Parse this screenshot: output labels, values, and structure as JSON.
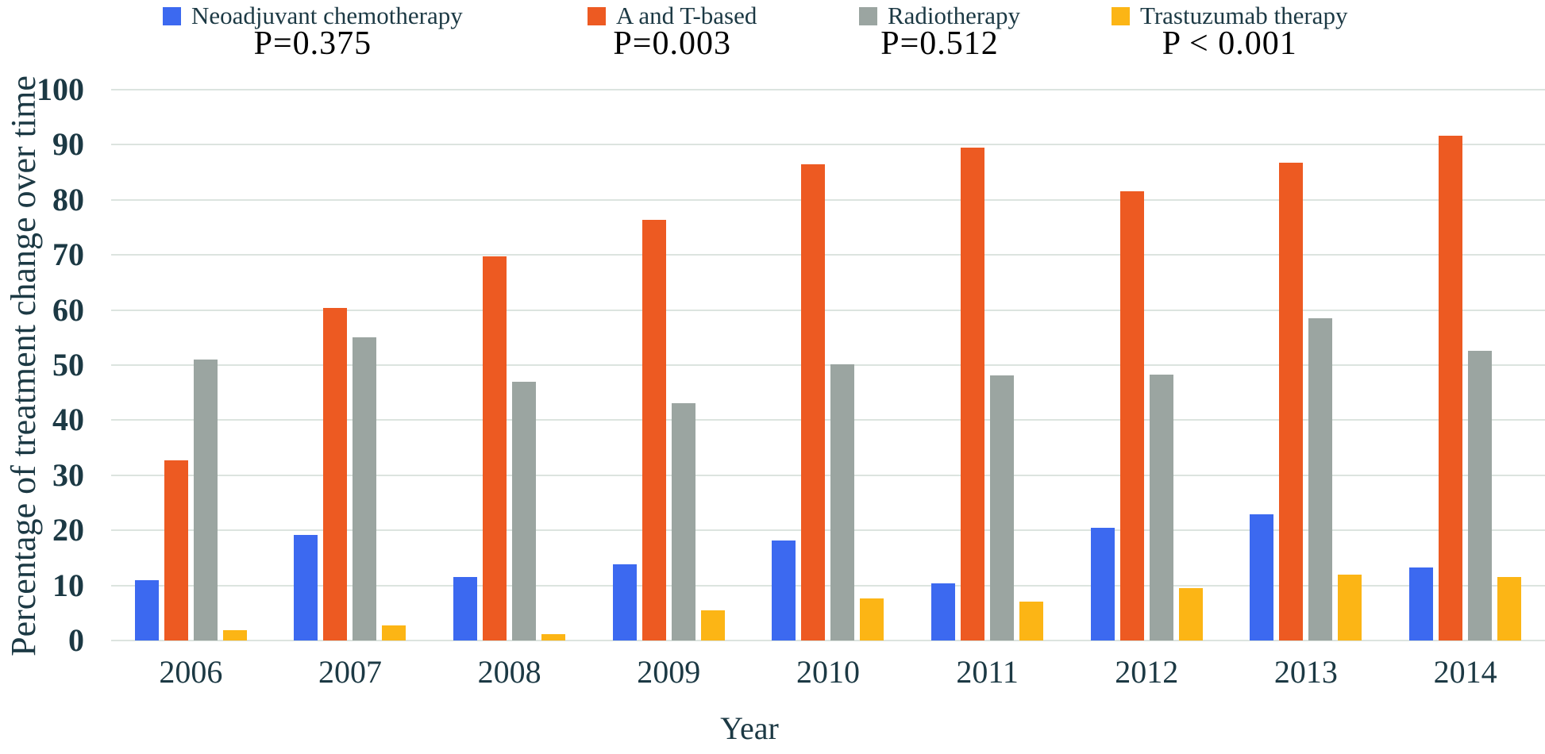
{
  "legend": [
    {
      "label": "Neoadjuvant chemotherapy",
      "p_value": "P=0.375",
      "color": "#3c69f0"
    },
    {
      "label": "A and T-based",
      "p_value": "P=0.003",
      "color": "#ed5a22"
    },
    {
      "label": "Radiotherapy",
      "p_value": "P=0.512",
      "color": "#9ba5a1"
    },
    {
      "label": "Trastuzumab therapy",
      "p_value": "P < 0.001",
      "color": "#fcb515"
    }
  ],
  "chart_data": {
    "type": "bar",
    "title": "",
    "xlabel": "Year",
    "ylabel": "Percentage of treatment change over time",
    "ylim": [
      0,
      100
    ],
    "grid": true,
    "legend_position": "top",
    "yticks": [
      "100",
      "90",
      "80",
      "70",
      "60",
      "50",
      "40",
      "30",
      "20",
      "10",
      "0"
    ],
    "categories": [
      "2006",
      "2007",
      "2008",
      "2009",
      "2010",
      "2011",
      "2012",
      "2013",
      "2014"
    ],
    "series": [
      {
        "name": "Neoadjuvant chemotherapy",
        "p_value": "P=0.375",
        "values": [
          10.9,
          19.2,
          11.6,
          13.9,
          18.2,
          10.4,
          20.4,
          22.9,
          13.2
        ]
      },
      {
        "name": "A and T-based",
        "p_value": "P=0.003",
        "values": [
          32.7,
          60.4,
          69.8,
          76.3,
          86.4,
          89.5,
          81.6,
          86.7,
          91.6
        ]
      },
      {
        "name": "Radiotherapy",
        "p_value": "P=0.512",
        "values": [
          51.0,
          55.0,
          47.0,
          43.1,
          50.1,
          48.2,
          48.3,
          58.5,
          52.6
        ]
      },
      {
        "name": "Trastuzumab therapy",
        "p_value": "P < 0.001",
        "values": [
          1.9,
          2.8,
          1.1,
          5.5,
          7.6,
          7.1,
          9.5,
          12.0,
          11.5
        ]
      }
    ],
    "colors": [
      "#3c69f0",
      "#ed5a22",
      "#9ba5a1",
      "#fcb515"
    ],
    "gridline_color": "#dce4df",
    "text_color": "#1c3944"
  }
}
